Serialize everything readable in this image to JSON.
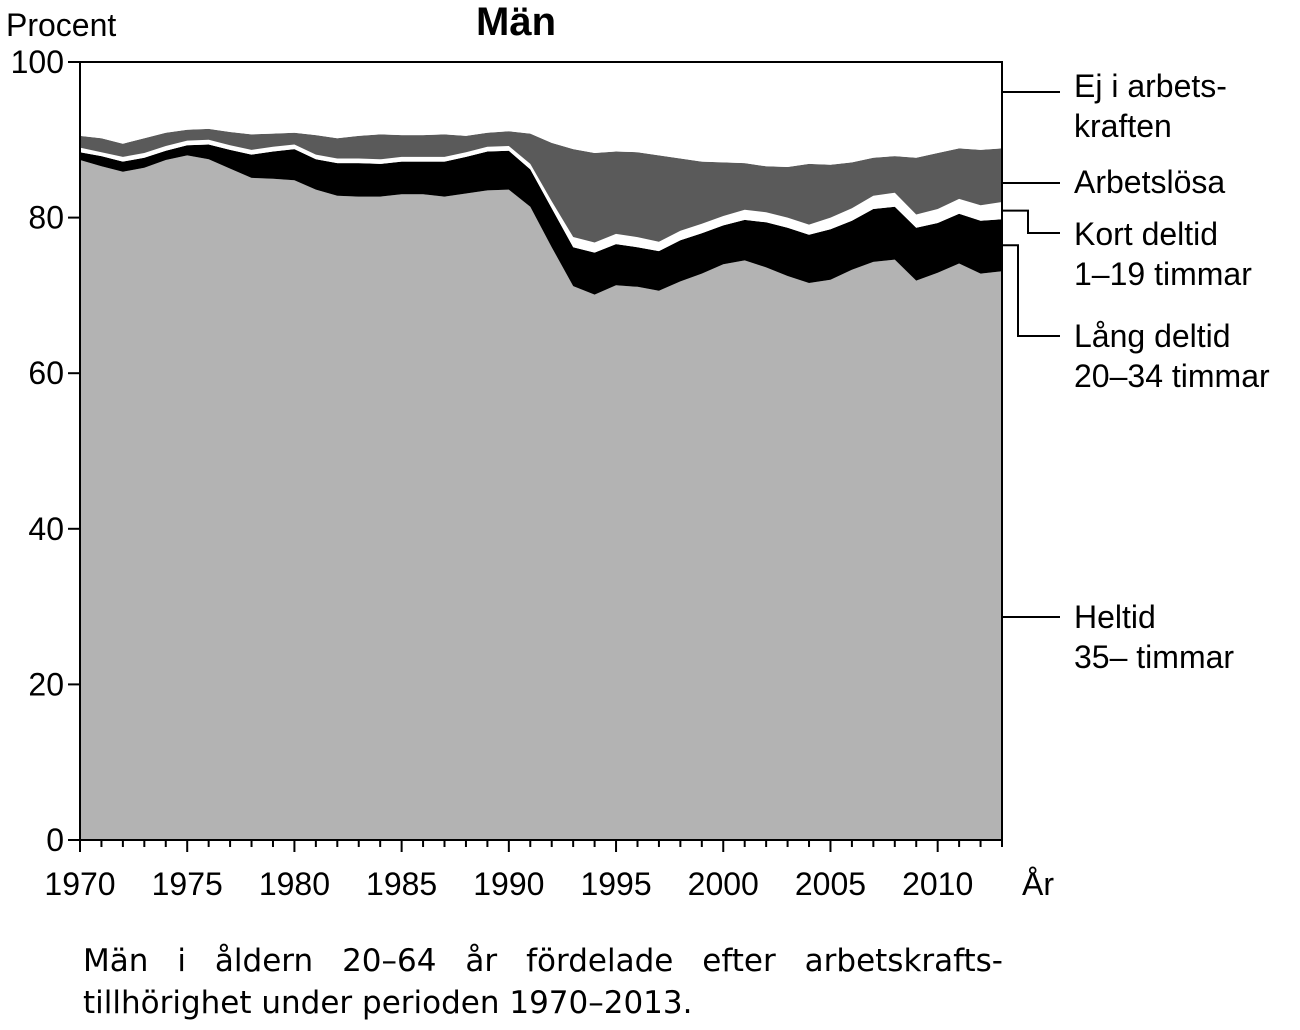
{
  "chart_data": {
    "type": "area",
    "title": "Män",
    "ylabel": "Procent",
    "xlabel": "År",
    "ylim": [
      0,
      100
    ],
    "xlim": [
      1970,
      2013
    ],
    "yticks": [
      0,
      20,
      40,
      60,
      80,
      100
    ],
    "xticks": [
      1970,
      1975,
      1980,
      1985,
      1990,
      1995,
      2000,
      2005,
      2010
    ],
    "grid": false,
    "legend_placement": "right, labels aligned to layers",
    "stacked": true,
    "x": [
      1970,
      1971,
      1972,
      1973,
      1974,
      1975,
      1976,
      1977,
      1978,
      1979,
      1980,
      1981,
      1982,
      1983,
      1984,
      1985,
      1986,
      1987,
      1988,
      1989,
      1990,
      1991,
      1992,
      1993,
      1994,
      1995,
      1996,
      1997,
      1998,
      1999,
      2000,
      2001,
      2002,
      2003,
      2004,
      2005,
      2006,
      2007,
      2008,
      2009,
      2010,
      2011,
      2012,
      2013
    ],
    "series": [
      {
        "name": "Heltid 35– timmar",
        "color": "#b3b3b3",
        "values": [
          87.4,
          86.6,
          85.9,
          86.4,
          87.4,
          88.0,
          87.5,
          86.3,
          85.1,
          85.0,
          84.8,
          83.6,
          82.8,
          82.7,
          82.7,
          83.0,
          83.0,
          82.7,
          83.1,
          83.5,
          83.6,
          81.4,
          76.2,
          71.2,
          70.1,
          71.3,
          71.1,
          70.6,
          71.8,
          72.8,
          74.0,
          74.5,
          73.6,
          72.5,
          71.6,
          72.0,
          73.3,
          74.3,
          74.6,
          71.9,
          72.9,
          74.1,
          72.8,
          73.1
        ]
      },
      {
        "name": "Lång deltid 20–34 timmar",
        "color": "#000000",
        "values": [
          1.0,
          1.3,
          1.3,
          1.3,
          1.2,
          1.3,
          1.9,
          2.4,
          3.0,
          3.5,
          4.0,
          3.9,
          4.2,
          4.3,
          4.2,
          4.2,
          4.2,
          4.5,
          4.7,
          5.0,
          5.0,
          4.8,
          5.0,
          5.0,
          5.4,
          5.3,
          5.1,
          5.1,
          5.3,
          5.2,
          5.0,
          5.2,
          5.8,
          6.2,
          6.2,
          6.5,
          6.3,
          6.8,
          6.8,
          6.8,
          6.4,
          6.4,
          6.8,
          6.7
        ]
      },
      {
        "name": "Kort deltid 1–19 timmar",
        "color": "#ffffff",
        "values": [
          0.6,
          0.5,
          0.6,
          0.6,
          0.6,
          0.6,
          0.6,
          0.6,
          0.6,
          0.6,
          0.6,
          0.6,
          0.6,
          0.6,
          0.6,
          0.6,
          0.6,
          0.6,
          0.6,
          0.6,
          0.6,
          0.7,
          0.9,
          1.3,
          1.3,
          1.3,
          1.3,
          1.2,
          1.2,
          1.2,
          1.2,
          1.3,
          1.3,
          1.3,
          1.3,
          1.5,
          1.6,
          1.7,
          1.8,
          1.7,
          1.8,
          1.9,
          2.0,
          2.2
        ]
      },
      {
        "name": "Arbetslösa",
        "color": "#5a5a5a",
        "values": [
          1.5,
          1.8,
          1.7,
          1.9,
          1.7,
          1.4,
          1.4,
          1.7,
          2.0,
          1.7,
          1.5,
          2.5,
          2.6,
          2.9,
          3.2,
          2.8,
          2.8,
          2.9,
          2.1,
          1.8,
          1.9,
          3.9,
          7.5,
          11.3,
          11.5,
          10.6,
          10.9,
          11.1,
          9.3,
          8.0,
          6.9,
          6.0,
          5.9,
          6.5,
          7.8,
          6.8,
          5.9,
          4.9,
          4.7,
          7.3,
          7.2,
          6.5,
          7.1,
          6.9
        ]
      },
      {
        "name": "Ej i arbets-kraften",
        "color": "#ffffff",
        "values": [
          9.5,
          9.8,
          10.5,
          9.8,
          9.1,
          8.7,
          8.6,
          9.0,
          9.3,
          9.2,
          9.1,
          9.4,
          9.8,
          9.5,
          9.3,
          9.4,
          9.4,
          9.3,
          9.5,
          9.1,
          8.9,
          9.2,
          10.4,
          11.2,
          11.7,
          11.5,
          11.6,
          12.0,
          12.4,
          12.8,
          12.9,
          13.0,
          13.4,
          13.5,
          13.1,
          13.2,
          12.9,
          12.3,
          12.1,
          12.3,
          11.7,
          11.1,
          11.3,
          11.1
        ]
      }
    ],
    "legend": [
      {
        "line1": "Ej i arbets-",
        "line2": "kraften"
      },
      {
        "line1": "Arbetslösa",
        "line2": ""
      },
      {
        "line1": "Kort deltid",
        "line2": "1–19 timmar"
      },
      {
        "line1": "Lång deltid",
        "line2": "20–34 timmar"
      },
      {
        "line1": "Heltid",
        "line2": "35– timmar"
      }
    ]
  },
  "caption": "Män i åldern 20–64 år fördelade efter arbetskrafts-tillhörighet under perioden 1970–2013."
}
